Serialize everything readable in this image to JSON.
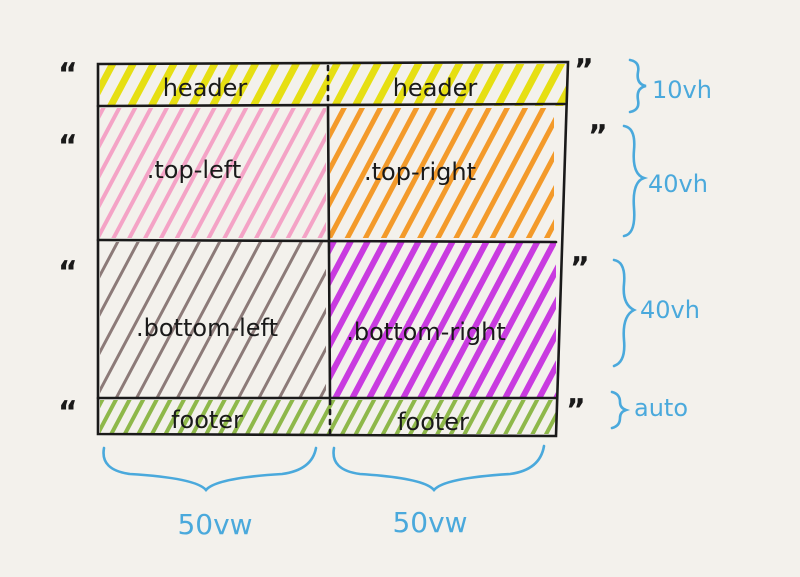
{
  "grid": {
    "rows": [
      {
        "height": "10vh",
        "cells": [
          "header",
          "header"
        ],
        "open_quote": "“",
        "close_quote": "”"
      },
      {
        "height": "40vh",
        "cells": [
          ".top-left",
          ".top-right"
        ],
        "open_quote": "“",
        "close_quote": "”"
      },
      {
        "height": "40vh",
        "cells": [
          ".bottom-left",
          ".bottom-right"
        ],
        "open_quote": "“",
        "close_quote": "”"
      },
      {
        "height": "auto",
        "cells": [
          "footer",
          "footer"
        ],
        "open_quote": "“",
        "close_quote": "”"
      }
    ],
    "columns": [
      "50vw",
      "50vw"
    ]
  },
  "colors": {
    "header": "#e6df12",
    "top_left": "#f4a3c6",
    "top_right": "#f39a2a",
    "bottom_left": "#8c7a78",
    "bottom_right": "#c93be0",
    "footer": "#8eb84a",
    "annotation": "#4aa9dc",
    "ink": "#1a1a1a"
  }
}
